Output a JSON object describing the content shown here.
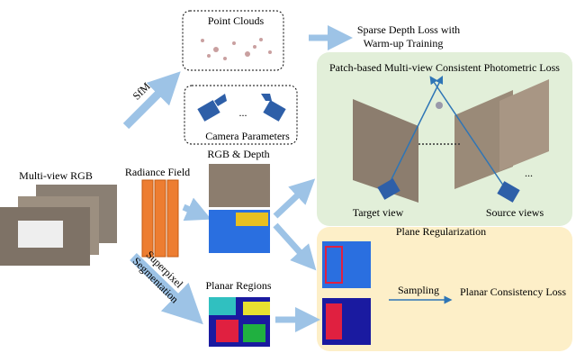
{
  "point_clouds": {
    "label": "Point Clouds"
  },
  "sfm": {
    "label": "SfM"
  },
  "camera_parameters": {
    "label": "Camera Parameters",
    "ellipsis": "..."
  },
  "sparse_depth_loss": {
    "lines": [
      "Sparse Depth Loss with",
      "Warm-up Training"
    ]
  },
  "photometric_panel": {
    "title": "Patch-based Multi-view Consistent Photometric Loss",
    "target": "Target view",
    "source": "Source views",
    "ellipsis": "..."
  },
  "multi_view_rgb": {
    "label": "Multi-view RGB"
  },
  "radiance_field": {
    "label": "Radiance Field"
  },
  "rgb_depth": {
    "label": "RGB & Depth"
  },
  "superpixel": {
    "lines": [
      "Superpixel",
      "Segmentation"
    ]
  },
  "planar_regions": {
    "label": "Planar Regions"
  },
  "plane_panel": {
    "title": "Plane Regularization",
    "sampling": "Sampling",
    "loss": "Planar Consistency Loss"
  }
}
